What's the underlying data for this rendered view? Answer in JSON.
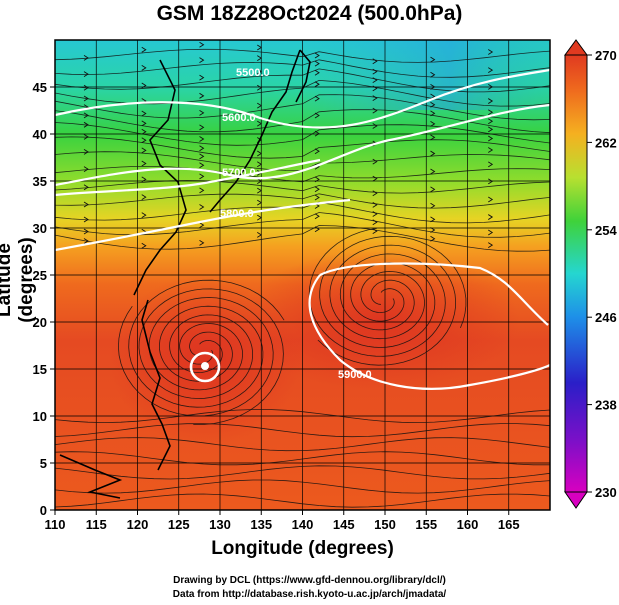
{
  "title": "GSM 18Z28Oct2024 (500.0hPa)",
  "axes": {
    "xlabel": "Longitude (degrees)",
    "ylabel": "Latitude  (degrees)",
    "xticks": [
      "110",
      "115",
      "120",
      "125",
      "130",
      "135",
      "140",
      "145",
      "150",
      "155",
      "160",
      "165"
    ],
    "yticks": [
      "0",
      "5",
      "10",
      "15",
      "20",
      "25",
      "30",
      "35",
      "40",
      "45"
    ],
    "xrange": [
      110,
      170
    ],
    "yrange": [
      0,
      50
    ]
  },
  "colorbar": {
    "ticks": [
      "270",
      "262",
      "254",
      "246",
      "238",
      "230"
    ],
    "range": [
      230,
      270
    ],
    "colors": [
      "#d800c0",
      "#2a1fc8",
      "#1e8fe8",
      "#25d6d0",
      "#3fd23a",
      "#b8e030",
      "#f5b020",
      "#ef6a1e",
      "#e03a20"
    ]
  },
  "contours": {
    "labels": [
      "5900.0",
      "5800.0",
      "5700.0",
      "5600.0",
      "5500.0"
    ],
    "color": "#ffffff"
  },
  "credits": {
    "line1": "Drawing by DCL (https://www.gfd-dennou.org/library/dcl/)",
    "line2": "Data from http://database.rish.kyoto-u.ac.jp/arch/jmadata/"
  },
  "chart_data": {
    "type": "heatmap",
    "title": "GSM 18Z28Oct2024 (500.0hPa)",
    "xlabel": "Longitude (degrees)",
    "ylabel": "Latitude  (degrees)",
    "xlim": [
      110,
      170
    ],
    "ylim": [
      0,
      50
    ],
    "color_variable_range": [
      230,
      270
    ],
    "colorbar_ticks": [
      270,
      262,
      254,
      246,
      238,
      230
    ],
    "temperature_by_latitude": [
      {
        "lat": 48,
        "value": 248
      },
      {
        "lat": 45,
        "value": 251
      },
      {
        "lat": 40,
        "value": 254
      },
      {
        "lat": 35,
        "value": 258
      },
      {
        "lat": 30,
        "value": 263
      },
      {
        "lat": 20,
        "value": 267
      },
      {
        "lat": 10,
        "value": 267
      },
      {
        "lat": 0,
        "value": 266
      }
    ],
    "height_contours": [
      {
        "label": "5900.0",
        "value": 5900
      },
      {
        "label": "5800.0",
        "value": 5800
      },
      {
        "label": "5700.0",
        "value": 5700
      },
      {
        "label": "5600.0",
        "value": 5600
      },
      {
        "label": "5500.0",
        "value": 5500
      }
    ],
    "features": [
      {
        "name": "typhoon-center",
        "lon": 128,
        "lat": 17
      },
      {
        "name": "anticyclone-center",
        "lon": 150,
        "lat": 22.5
      }
    ],
    "grid": true,
    "overlay": "streamlines"
  }
}
